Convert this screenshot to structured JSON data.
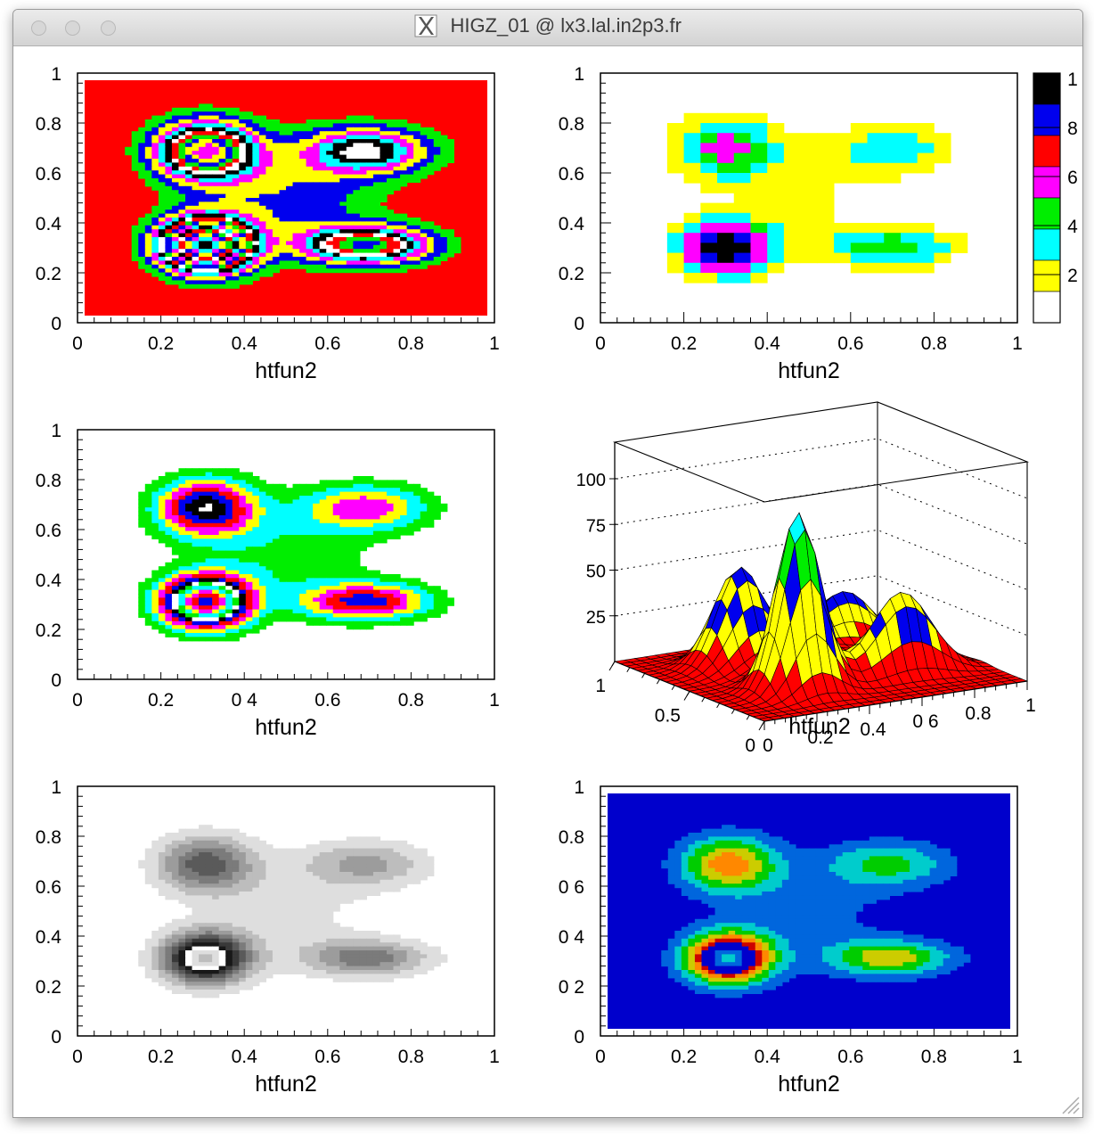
{
  "window": {
    "title": "HIGZ_01 @ lx3.lal.in2p3.fr",
    "controls": [
      "close",
      "minimize",
      "zoom"
    ],
    "app_icon": "x11-icon"
  },
  "chart_data": [
    {
      "type": "heatmap",
      "variant": "contour-fill",
      "xlabel": "htfun2",
      "xlim": [
        0,
        1
      ],
      "ylim": [
        0,
        1
      ],
      "xticks": [
        "0",
        "0.2",
        "0.4",
        "0.6",
        "0.8",
        "1"
      ],
      "yticks": [
        "0",
        "0.2",
        "0.4",
        "0.6",
        "0.8",
        "1"
      ],
      "palette": [
        "#ff0000",
        "#00ee00",
        "#0000ee",
        "#ffff00",
        "#ff00ff",
        "#00ffff",
        "#000000",
        "#ffffff"
      ],
      "background": "#ff0000"
    },
    {
      "type": "heatmap",
      "variant": "colz-boxes",
      "xlabel": "htfun2",
      "xlim": [
        0,
        1
      ],
      "ylim": [
        0,
        1
      ],
      "xticks": [
        "0",
        "0.2",
        "0.4",
        "0.6",
        "0.8",
        "1"
      ],
      "yticks": [
        "0",
        "0.2",
        "0.4",
        "0.6",
        "0.8",
        "1"
      ],
      "colorbar": {
        "labels": [
          "1",
          "8",
          "6",
          "4",
          "2"
        ],
        "colors": [
          "#000000",
          "#0000ee",
          "#ff0000",
          "#ff00ff",
          "#00ee00",
          "#00ffff",
          "#ffff00",
          "#ffffff"
        ]
      }
    },
    {
      "type": "heatmap",
      "variant": "contour-fill",
      "xlabel": "htfun2",
      "xlim": [
        0,
        1
      ],
      "ylim": [
        0,
        1
      ],
      "xticks": [
        "0",
        "0.2",
        "0 4",
        "0.6",
        "0.8",
        "1"
      ],
      "yticks": [
        "0",
        "0.2",
        "0.4",
        "0.6",
        "0.8",
        "1"
      ],
      "palette": [
        "#ffffff",
        "#00ee00",
        "#00ffff",
        "#ffff00",
        "#ff00ff",
        "#ff0000",
        "#0000ee",
        "#000000"
      ],
      "background": "#ffffff"
    },
    {
      "type": "surface",
      "xlabel": "htfun2",
      "zticks": [
        "100",
        "75",
        "50",
        "25"
      ],
      "xticks": [
        "0",
        "0.2",
        "0.4",
        "0 6",
        "0.8",
        "1"
      ],
      "yticks": [
        "1",
        "0.5",
        "0"
      ],
      "palette": [
        "#ff0000",
        "#ffff00",
        "#0000ee",
        "#00ee00",
        "#ff00ff",
        "#00ffff"
      ]
    },
    {
      "type": "heatmap",
      "variant": "contour-fill-grayscale",
      "xlabel": "htfun2",
      "xlim": [
        0,
        1
      ],
      "ylim": [
        0,
        1
      ],
      "xticks": [
        "0",
        "0.2",
        "0.4",
        "0.6",
        "0.8",
        "1"
      ],
      "yticks": [
        "0",
        "0.2",
        "0.4",
        "0.6",
        "0.8",
        "1"
      ],
      "palette": [
        "#ffffff",
        "#dedede",
        "#bdbdbd",
        "#9c9c9c",
        "#7b7b7b",
        "#5a5a5a",
        "#393939",
        "#181818"
      ],
      "background": "#ffffff"
    },
    {
      "type": "heatmap",
      "variant": "contour-fill-rainbow",
      "xlabel": "htfun2",
      "xlim": [
        0,
        1
      ],
      "ylim": [
        0,
        1
      ],
      "xticks": [
        "0",
        "0.2",
        "0.4",
        "0.6",
        "0.8",
        "1"
      ],
      "yticks": [
        "0",
        "0 2",
        "0 4",
        "0 6",
        "0.8",
        "1"
      ],
      "palette": [
        "#0000cc",
        "#0066dd",
        "#00cccc",
        "#00cc00",
        "#cccc00",
        "#ff8800",
        "#cc0000",
        "#0000cc"
      ],
      "background": "#0000cc"
    }
  ]
}
